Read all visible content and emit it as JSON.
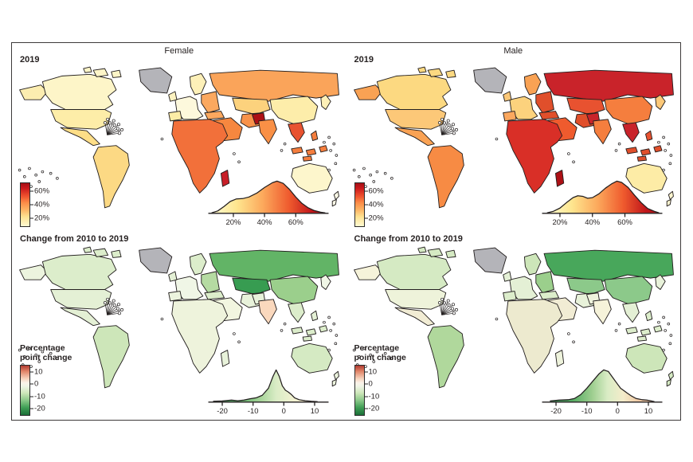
{
  "figure": {
    "columns": [
      {
        "label": "Female"
      },
      {
        "label": "Male"
      }
    ]
  },
  "colors": {
    "background": "#ffffff",
    "frame_border": "#3d3a3a",
    "map_outline": "#231f1f",
    "no_data_gray": "#b4b4b9"
  },
  "chart_data": [
    {
      "type": "choropleth",
      "sex": "Female",
      "label": "2019",
      "legend": {
        "title": "",
        "ticks": [
          {
            "label": "60%",
            "pos": 0.2
          },
          {
            "label": "40%",
            "pos": 0.5
          },
          {
            "label": "20%",
            "pos": 0.8
          }
        ],
        "gradient": [
          [
            "#a50f15",
            0
          ],
          [
            "#cb1a1d",
            0.12
          ],
          [
            "#ef512e",
            0.3
          ],
          [
            "#fb8b47",
            0.45
          ],
          [
            "#fdb565",
            0.62
          ],
          [
            "#fee291",
            0.78
          ],
          [
            "#fffad2",
            1
          ]
        ]
      },
      "map_colors": {
        "greenland": "#b4b4b9",
        "alaska": "#fcedb0",
        "canada": "#fdf5c8",
        "arctic_islands": "#fdf5c8",
        "usa": "#fdeda8",
        "mexico": "#fede87",
        "south_america": "#fcd984",
        "europe_west": "#fdf8dc",
        "uk": "#fdf2c0",
        "iberia": "#fdeca6",
        "scandinavia": "#fdf0b8",
        "eastern_europe": "#fba85f",
        "russia": "#faa45a",
        "kazakhstan": "#fcd27d",
        "turkey": "#fba85f",
        "middle_east": "#f6873f",
        "iran_region": "#f8924a",
        "africa": "#f2703a",
        "madagascar": "#c81f28",
        "india": "#f99046",
        "south_asia_west": "#ad1015",
        "china": "#fdedaa",
        "se_asia": "#e85230",
        "indonesia": "#f57e3e",
        "philippines": "#f57e3e",
        "japan": "#fdf0b8",
        "australia": "#fdf6cc",
        "new_zealand": "#fefce8"
      },
      "density_inset": {
        "type": "area",
        "xdomain": [
          5,
          80
        ],
        "xticks": [
          {
            "v": 20,
            "label": "20%"
          },
          {
            "v": 40,
            "label": "40%"
          },
          {
            "v": 60,
            "label": "60%"
          }
        ],
        "points": [
          [
            6,
            0
          ],
          [
            10,
            0.06
          ],
          [
            14,
            0.2
          ],
          [
            18,
            0.36
          ],
          [
            22,
            0.44
          ],
          [
            26,
            0.45
          ],
          [
            30,
            0.5
          ],
          [
            35,
            0.62
          ],
          [
            40,
            0.8
          ],
          [
            45,
            0.95
          ],
          [
            48,
            1.0
          ],
          [
            52,
            0.93
          ],
          [
            56,
            0.74
          ],
          [
            60,
            0.5
          ],
          [
            64,
            0.3
          ],
          [
            68,
            0.16
          ],
          [
            72,
            0.07
          ],
          [
            76,
            0.02
          ],
          [
            79,
            0
          ]
        ],
        "gradient": [
          [
            "#fffbd4",
            0
          ],
          [
            "#fee68f",
            0.22
          ],
          [
            "#fca95c",
            0.45
          ],
          [
            "#ef5b2e",
            0.68
          ],
          [
            "#c0161b",
            0.88
          ],
          [
            "#a50f15",
            1
          ]
        ]
      }
    },
    {
      "type": "choropleth",
      "sex": "Male",
      "label": "2019",
      "legend": {
        "title": "",
        "ticks": [
          {
            "label": "60%",
            "pos": 0.2
          },
          {
            "label": "40%",
            "pos": 0.5
          },
          {
            "label": "20%",
            "pos": 0.8
          }
        ],
        "gradient": [
          [
            "#a50f15",
            0
          ],
          [
            "#cb1a1d",
            0.12
          ],
          [
            "#ef512e",
            0.3
          ],
          [
            "#fb8b47",
            0.45
          ],
          [
            "#fdb565",
            0.62
          ],
          [
            "#fee291",
            0.78
          ],
          [
            "#fffad2",
            1
          ]
        ]
      },
      "map_colors": {
        "greenland": "#b4b4b9",
        "alaska": "#f9a254",
        "canada": "#fcd981",
        "arctic_islands": "#fcd981",
        "usa": "#fcc878",
        "mexico": "#f9a254",
        "south_america": "#f78b44",
        "europe_west": "#fcd27d",
        "uk": "#fcc878",
        "iberia": "#fba85f",
        "scandinavia": "#f9a254",
        "eastern_europe": "#e04f2b",
        "russia": "#c9232a",
        "kazakhstan": "#e85230",
        "turkey": "#e04f2b",
        "middle_east": "#ef5b2e",
        "iran_region": "#e04f2b",
        "africa": "#d92f27",
        "madagascar": "#ad1015",
        "india": "#f57e3e",
        "south_asia_west": "#c9232a",
        "china": "#f57e3e",
        "se_asia": "#c9232a",
        "indonesia": "#e04f2b",
        "philippines": "#e85230",
        "japan": "#fcc878",
        "australia": "#fdeca6",
        "new_zealand": "#fdf6d0"
      },
      "density_inset": {
        "type": "area",
        "xdomain": [
          10,
          82
        ],
        "xticks": [
          {
            "v": 20,
            "label": "20%"
          },
          {
            "v": 40,
            "label": "40%"
          },
          {
            "v": 60,
            "label": "60%"
          }
        ],
        "points": [
          [
            12,
            0
          ],
          [
            16,
            0.05
          ],
          [
            20,
            0.15
          ],
          [
            24,
            0.32
          ],
          [
            28,
            0.48
          ],
          [
            31,
            0.54
          ],
          [
            34,
            0.52
          ],
          [
            37,
            0.46
          ],
          [
            40,
            0.48
          ],
          [
            44,
            0.6
          ],
          [
            48,
            0.78
          ],
          [
            52,
            0.92
          ],
          [
            55,
            1.0
          ],
          [
            58,
            0.96
          ],
          [
            62,
            0.8
          ],
          [
            66,
            0.55
          ],
          [
            70,
            0.32
          ],
          [
            74,
            0.14
          ],
          [
            78,
            0.05
          ],
          [
            81,
            0
          ]
        ],
        "gradient": [
          [
            "#fffbd4",
            0
          ],
          [
            "#fee68f",
            0.22
          ],
          [
            "#fca95c",
            0.45
          ],
          [
            "#ef5b2e",
            0.68
          ],
          [
            "#c0161b",
            0.88
          ],
          [
            "#a50f15",
            1
          ]
        ]
      }
    },
    {
      "type": "choropleth",
      "sex": "Female",
      "label": "Change from 2010 to 2019",
      "legend": {
        "title": "Percentage point change",
        "ticks": [
          {
            "label": "10",
            "pos": 0.14
          },
          {
            "label": "0",
            "pos": 0.38
          },
          {
            "label": "-10",
            "pos": 0.62
          },
          {
            "label": "-20",
            "pos": 0.86
          }
        ],
        "gradient": [
          [
            "#b03a30",
            0
          ],
          [
            "#e2876a",
            0.12
          ],
          [
            "#f7d6c0",
            0.27
          ],
          [
            "#fbf3ea",
            0.35
          ],
          [
            "#eff4e6",
            0.42
          ],
          [
            "#cfe7bb",
            0.55
          ],
          [
            "#8cc98a",
            0.7
          ],
          [
            "#3f9e55",
            0.85
          ],
          [
            "#1b7038",
            1
          ]
        ]
      },
      "map_colors": {
        "greenland": "#b4b4b9",
        "alaska": "#ecf4de",
        "canada": "#dcedcb",
        "arctic_islands": "#dcedcb",
        "usa": "#e4f0d5",
        "mexico": "#e4f0d5",
        "south_america": "#cde6b9",
        "europe_west": "#f0f6e6",
        "uk": "#e4f0d5",
        "iberia": "#ecf4de",
        "scandinavia": "#dcedcb",
        "eastern_europe": "#b5dba2",
        "russia": "#62b466",
        "kazakhstan": "#379c51",
        "turkey": "#dcedcb",
        "middle_east": "#f2f6e0",
        "iran_region": "#e8f2da",
        "africa": "#eef3dc",
        "madagascar": "#e8f2da",
        "india": "#fad8bd",
        "south_asia_west": "#e8f2da",
        "china": "#9bcf8c",
        "se_asia": "#dcedcb",
        "indonesia": "#dcedcb",
        "philippines": "#e4f0d5",
        "japan": "#f0f6e6",
        "australia": "#d5eac3",
        "new_zealand": "#ecf4de"
      },
      "density_inset": {
        "type": "area",
        "xdomain": [
          -24,
          14
        ],
        "xticks": [
          {
            "v": -20,
            "label": "-20"
          },
          {
            "v": -10,
            "label": "-10"
          },
          {
            "v": 0,
            "label": "0"
          },
          {
            "v": 10,
            "label": "10"
          }
        ],
        "points": [
          [
            -23,
            0.01
          ],
          [
            -20,
            0.02
          ],
          [
            -17,
            0.05
          ],
          [
            -15,
            0.03
          ],
          [
            -13,
            0.05
          ],
          [
            -11,
            0.09
          ],
          [
            -9,
            0.12
          ],
          [
            -7,
            0.2
          ],
          [
            -5,
            0.42
          ],
          [
            -3.5,
            0.8
          ],
          [
            -2.5,
            1.0
          ],
          [
            -1.5,
            0.8
          ],
          [
            -0.5,
            0.5
          ],
          [
            0.5,
            0.36
          ],
          [
            1.5,
            0.3
          ],
          [
            2.5,
            0.22
          ],
          [
            3.5,
            0.12
          ],
          [
            5,
            0.06
          ],
          [
            7,
            0.03
          ],
          [
            9,
            0.01
          ],
          [
            11,
            0
          ]
        ],
        "gradient": [
          [
            "#2e8b4f",
            0
          ],
          [
            "#5fb269",
            0.25
          ],
          [
            "#a5d398",
            0.45
          ],
          [
            "#d9ecc5",
            0.6
          ],
          [
            "#f4f2d2",
            0.78
          ],
          [
            "#f6ecca",
            1
          ]
        ]
      }
    },
    {
      "type": "choropleth",
      "sex": "Male",
      "label": "Change from 2010 to 2019",
      "legend": {
        "title": "Percentage point change",
        "ticks": [
          {
            "label": "10",
            "pos": 0.14
          },
          {
            "label": "0",
            "pos": 0.38
          },
          {
            "label": "-10",
            "pos": 0.62
          },
          {
            "label": "-20",
            "pos": 0.86
          }
        ],
        "gradient": [
          [
            "#b03a30",
            0
          ],
          [
            "#e2876a",
            0.12
          ],
          [
            "#f7d6c0",
            0.27
          ],
          [
            "#fbf3ea",
            0.35
          ],
          [
            "#eff4e6",
            0.42
          ],
          [
            "#cfe7bb",
            0.55
          ],
          [
            "#8cc98a",
            0.7
          ],
          [
            "#3f9e55",
            0.85
          ],
          [
            "#1b7038",
            1
          ]
        ]
      },
      "map_colors": {
        "greenland": "#b4b4b9",
        "alaska": "#f6f3da",
        "canada": "#d5eac3",
        "arctic_islands": "#d5eac3",
        "usa": "#eef3da",
        "mexico": "#f1ecd4",
        "south_america": "#b0d89c",
        "europe_west": "#e4f0d5",
        "uk": "#e4f0d5",
        "iberia": "#dcedcb",
        "scandinavia": "#cde6b9",
        "eastern_europe": "#9bcf8c",
        "russia": "#48a75b",
        "kazakhstan": "#8cc98a",
        "turkey": "#dcedcb",
        "middle_east": "#f1ecd4",
        "iran_region": "#e8f2da",
        "africa": "#edeacf",
        "madagascar": "#eef3dc",
        "india": "#f6f3da",
        "south_asia_west": "#eef3dc",
        "china": "#8cc98a",
        "se_asia": "#e4f0d5",
        "indonesia": "#dcedcb",
        "philippines": "#dcedcb",
        "japan": "#e8f2da",
        "australia": "#cde6b9",
        "new_zealand": "#d5eac3"
      },
      "density_inset": {
        "type": "area",
        "xdomain": [
          -24,
          14
        ],
        "xticks": [
          {
            "v": -20,
            "label": "-20"
          },
          {
            "v": -10,
            "label": "-10"
          },
          {
            "v": 0,
            "label": "0"
          },
          {
            "v": 10,
            "label": "10"
          }
        ],
        "points": [
          [
            -22,
            0.02
          ],
          [
            -19,
            0.05
          ],
          [
            -16,
            0.06
          ],
          [
            -14,
            0.1
          ],
          [
            -12,
            0.22
          ],
          [
            -10,
            0.42
          ],
          [
            -8,
            0.65
          ],
          [
            -6,
            0.88
          ],
          [
            -4.5,
            1.0
          ],
          [
            -3,
            0.95
          ],
          [
            -1.5,
            0.75
          ],
          [
            0,
            0.55
          ],
          [
            1,
            0.42
          ],
          [
            2,
            0.35
          ],
          [
            3,
            0.28
          ],
          [
            4.5,
            0.18
          ],
          [
            6,
            0.1
          ],
          [
            8,
            0.06
          ],
          [
            9.5,
            0.05
          ],
          [
            11,
            0.02
          ],
          [
            12,
            0
          ]
        ],
        "gradient": [
          [
            "#2e8b4f",
            0
          ],
          [
            "#57ac63",
            0.22
          ],
          [
            "#9ccd8e",
            0.4
          ],
          [
            "#d9ecc5",
            0.55
          ],
          [
            "#f4ecca",
            0.7
          ],
          [
            "#f0c9a4",
            0.85
          ],
          [
            "#eebd9a",
            1
          ]
        ]
      }
    }
  ]
}
